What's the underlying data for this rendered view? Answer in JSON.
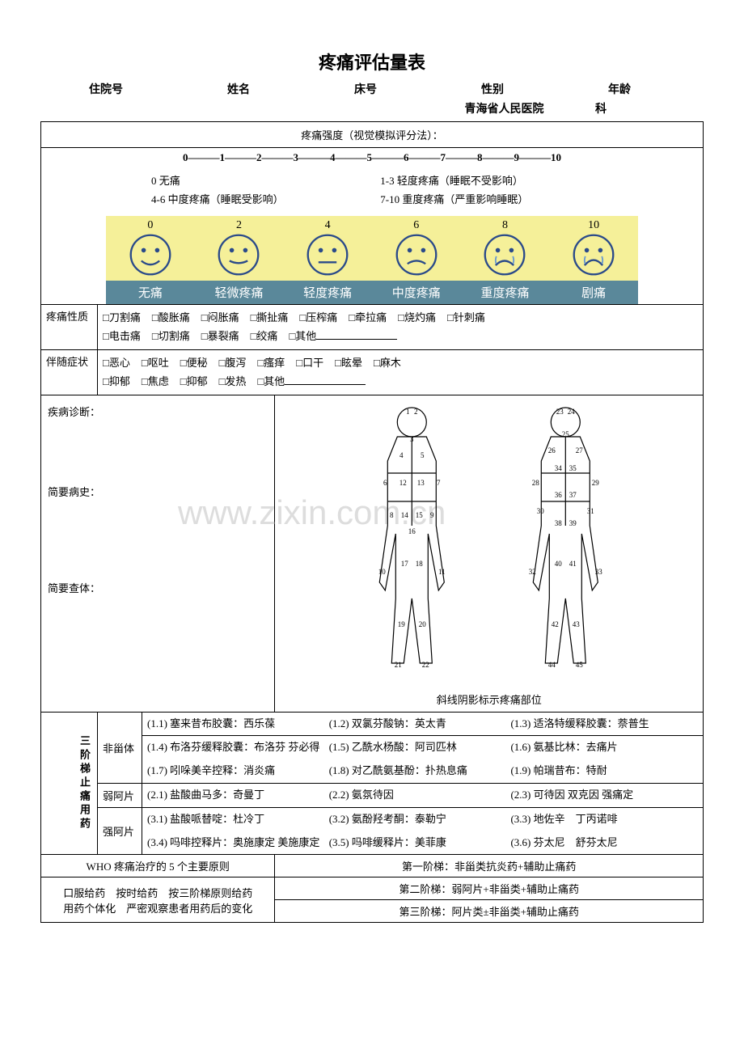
{
  "title": "疼痛评估量表",
  "header": {
    "fields": [
      "住院号",
      "姓名",
      "床号",
      "性别",
      "年龄"
    ],
    "hospital": "青海省人民医院",
    "dept_suffix": "科"
  },
  "intensity": {
    "heading": "疼痛强度（视觉模拟评分法）：",
    "scale": "0———1———2———3———4———5———6———7———8———9———10",
    "levels": [
      {
        "left": "0 无痛",
        "right": "1-3 轻度疼痛（睡眠不受影响）"
      },
      {
        "left": "4-6 中度疼痛（睡眠受影响）",
        "right": "7-10 重度疼痛（严重影响睡眠）"
      }
    ],
    "faces": {
      "nums": [
        "0",
        "2",
        "4",
        "6",
        "8",
        "10"
      ],
      "labels": [
        "无痛",
        "轻微疼痛",
        "轻度疼痛",
        "中度疼痛",
        "重度疼痛",
        "剧痛"
      ],
      "bg_color": "#f5f099",
      "label_bg": "#5a889a",
      "face_stroke": "#2a4a8a",
      "tear_color": "#6a9acf"
    }
  },
  "nature": {
    "label": "疼痛性质",
    "row1": [
      "□刀割痛",
      "□酸胀痛",
      "□闷胀痛",
      "□撕扯痛",
      "□压榨痛",
      "□牵拉痛",
      "□烧灼痛",
      "□针刺痛"
    ],
    "row2": [
      "□电击痛",
      "□切割痛",
      "□暴裂痛",
      "□绞痛",
      "□其他"
    ]
  },
  "symptoms": {
    "label": "伴随症状",
    "row1": [
      "□恶心",
      "□呕吐",
      "□便秘",
      "□腹泻",
      "□瘙痒",
      "□口干",
      "□眩晕",
      "□麻木"
    ],
    "row2": [
      "□抑郁",
      "□焦虑",
      "□抑郁",
      "□发热",
      "□其他"
    ]
  },
  "diagnosis": {
    "diag_label": "疾病诊断：",
    "history_label": "简要病史：",
    "exam_label": "简要查体：",
    "body_caption": "斜线阴影标示疼痛部位"
  },
  "watermark": "www.zixin.com.cn",
  "meds": {
    "section_label": "三阶梯止痛用药",
    "rows": [
      {
        "cat": "非甾体",
        "items": [
          "(1.1) 塞来昔布胶囊：西乐葆",
          "(1.2) 双氯芬酸钠：英太青",
          "(1.3) 适洛特缓释胶囊：萘普生",
          "(1.4) 布洛芬缓释胶囊：布洛芬 芬必得",
          "(1.5) 乙酰水杨酸：阿司匹林",
          "(1.6) 氨基比林：去痛片",
          "(1.7) 吲哚美辛控释：消炎痛",
          "(1.8) 对乙酰氨基酚：扑热息痛",
          "(1.9) 帕瑞昔布：特耐"
        ]
      },
      {
        "cat": "弱阿片",
        "items": [
          "(2.1) 盐酸曲马多：奇曼丁",
          "(2.2) 氨氛待因",
          "(2.3) 可待因 双克因 强痛定"
        ]
      },
      {
        "cat": "强阿片",
        "items": [
          "(3.1) 盐酸哌替啶：杜冷丁",
          "(3.2) 氨酚羟考酮：泰勒宁",
          "(3.3) 地佐辛　丁丙诺啡",
          "(3.4) 吗啡控释片：奥施康定 美施康定",
          "(3.5) 吗啡缓释片：美菲康",
          "(3.6) 芬太尼　舒芬太尼"
        ]
      }
    ],
    "who_title": "WHO 疼痛治疗的 5 个主要原则",
    "who_lines": [
      "口服给药　按时给药　按三阶梯原则给药",
      "用药个体化　严密观察患者用药后的变化"
    ],
    "ladder": [
      "第一阶梯：非甾类抗炎药+辅助止痛药",
      "第二阶梯：弱阿片+非甾类+辅助止痛药",
      "第三阶梯：阿片类±非甾类+辅助止痛药"
    ]
  }
}
